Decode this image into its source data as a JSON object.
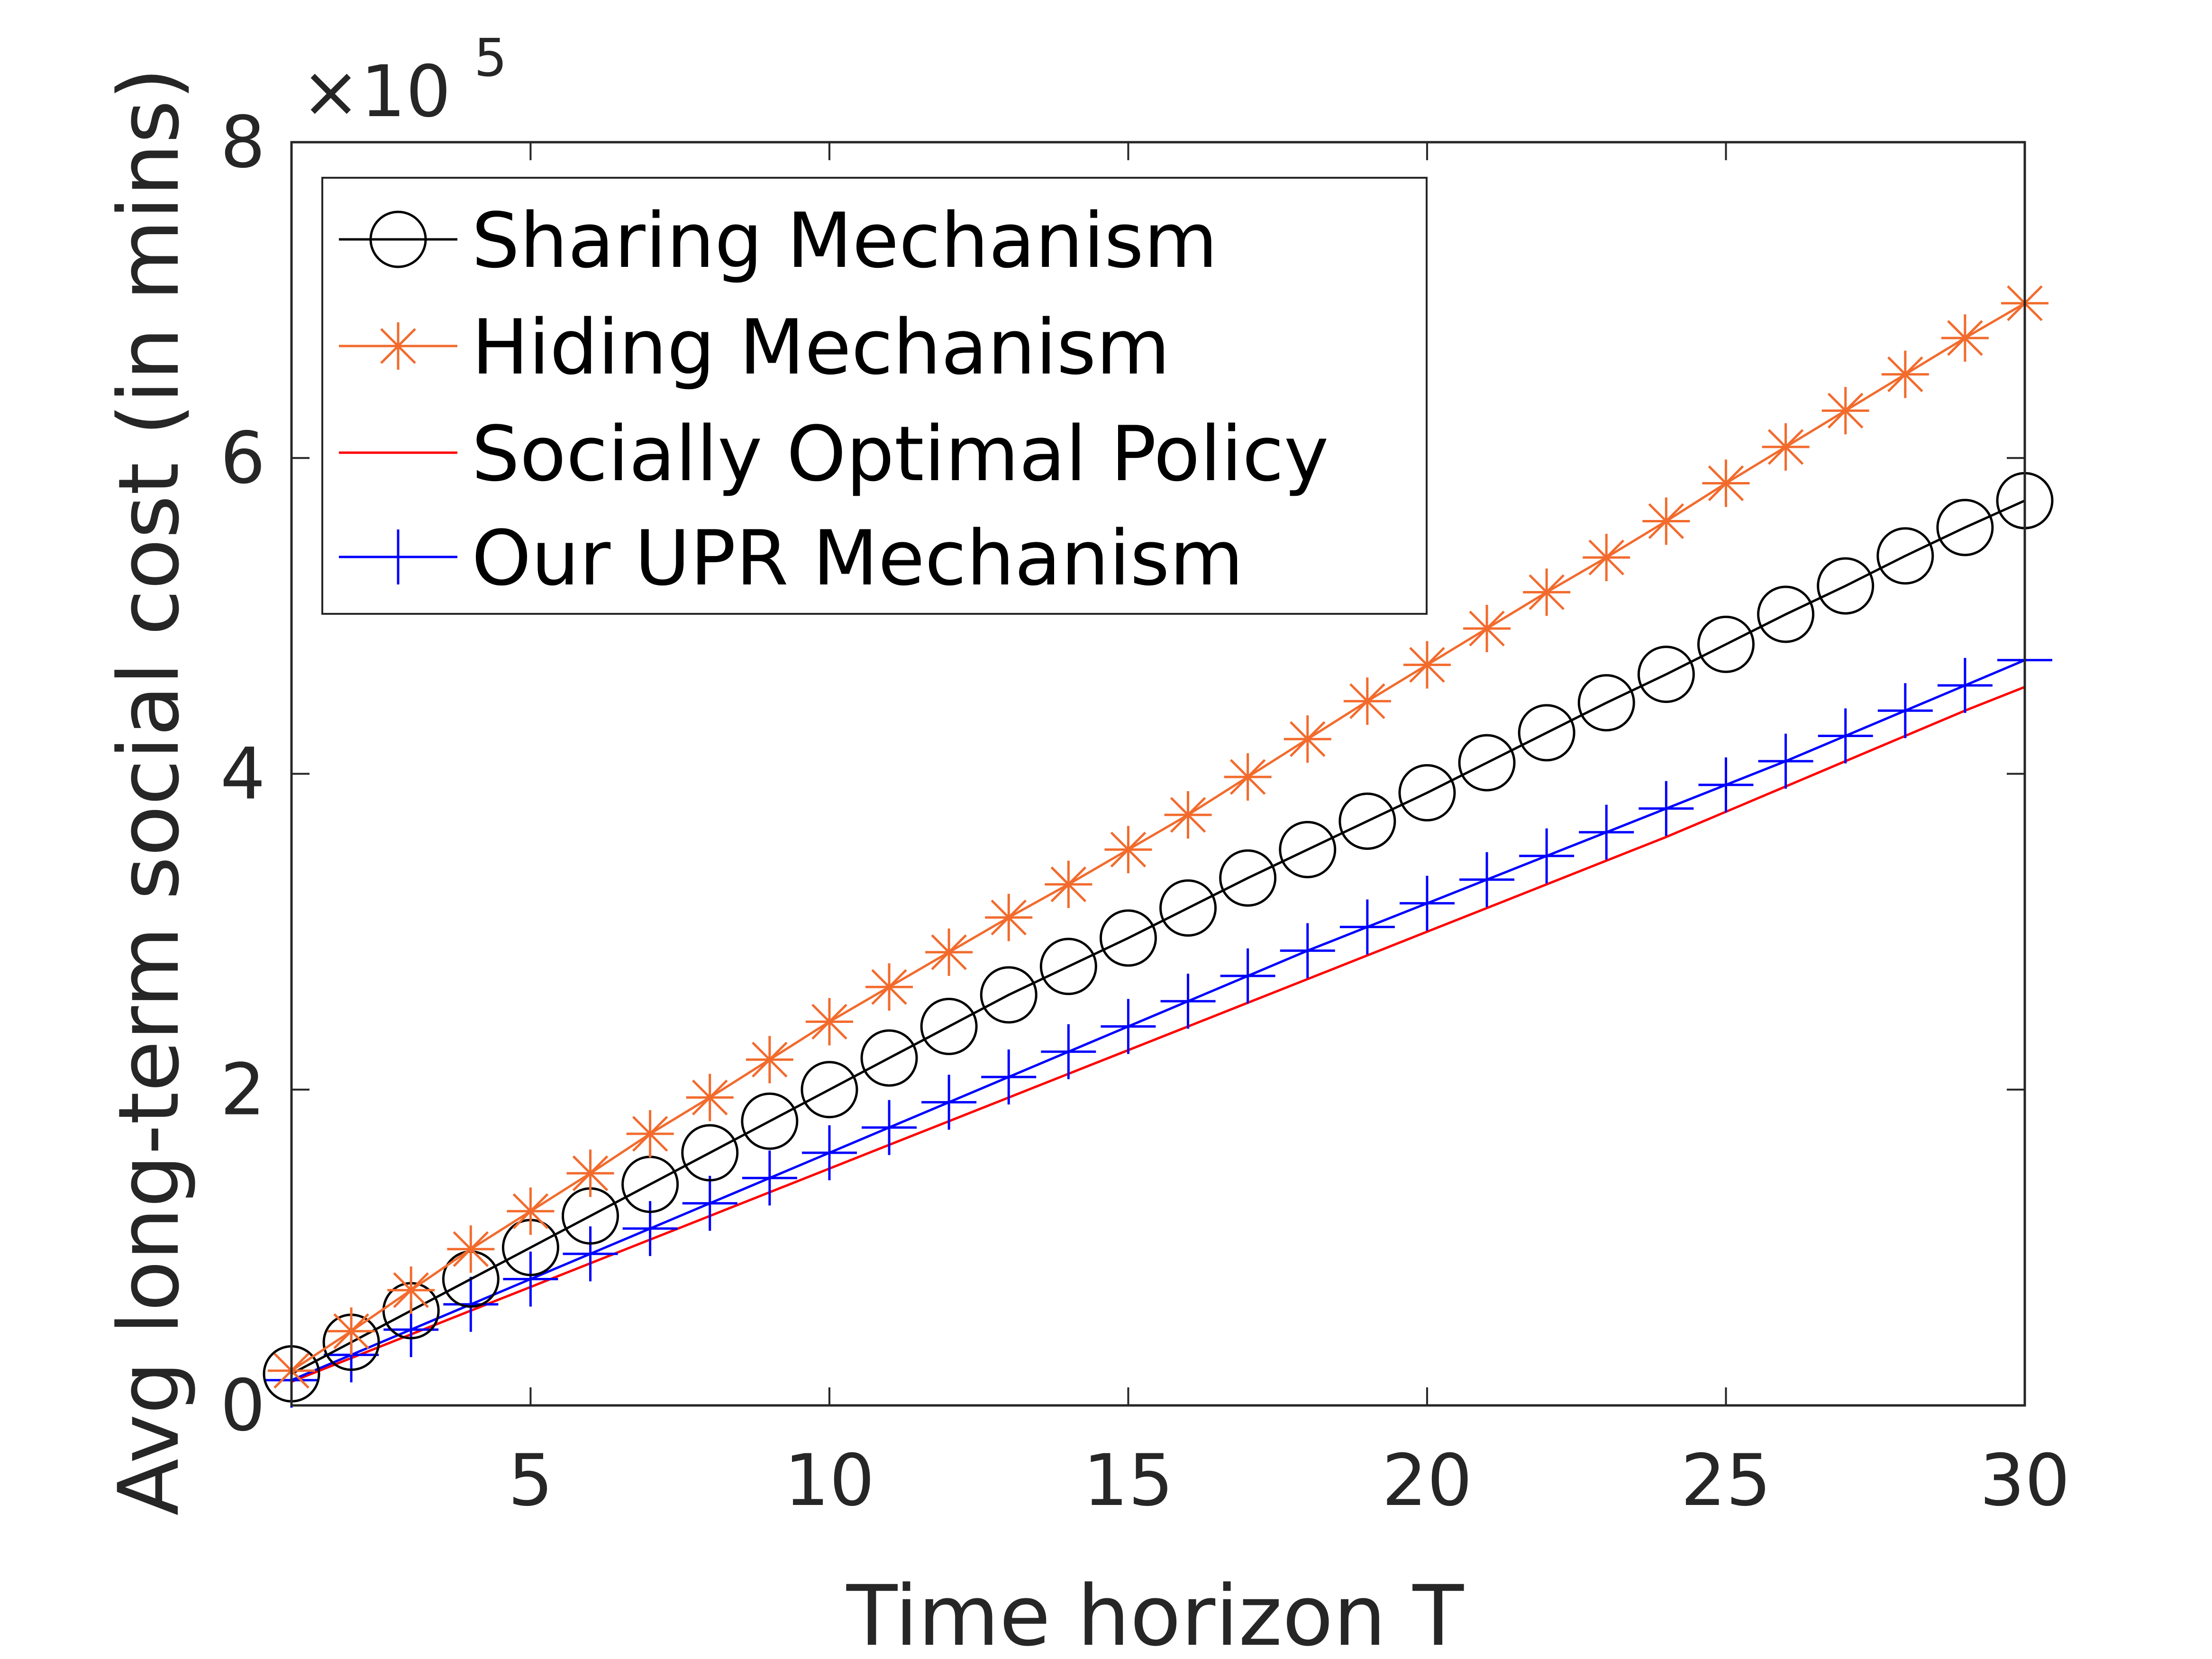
{
  "chart_data": {
    "type": "line",
    "xlabel": "Time horizon T",
    "ylabel": "Avg long-term social cost (in mins)",
    "y_multiplier": "×10",
    "y_exponent": "5",
    "xlim": [
      1,
      30
    ],
    "ylim": [
      0,
      800000
    ],
    "xticks": [
      5,
      10,
      15,
      20,
      25,
      30
    ],
    "yticks": [
      0,
      200000,
      400000,
      600000,
      800000
    ],
    "ytick_labels": [
      "0",
      "2",
      "4",
      "6",
      "8"
    ],
    "grid": false,
    "legend_position": "top-left",
    "x": [
      1,
      2,
      3,
      4,
      5,
      6,
      7,
      8,
      9,
      10,
      11,
      12,
      13,
      14,
      15,
      16,
      17,
      18,
      19,
      20,
      21,
      22,
      23,
      24,
      25,
      26,
      27,
      28,
      29,
      30
    ],
    "series": [
      {
        "name": "Sharing Mechanism",
        "color": "#000000",
        "marker": "circle",
        "values": [
          20000,
          40000,
          60000,
          80000,
          100000,
          120000,
          140000,
          160000,
          180000,
          200000,
          220000,
          240000,
          260000,
          278000,
          296000,
          315000,
          334000,
          352000,
          370000,
          388000,
          407000,
          426000,
          445000,
          463000,
          482000,
          501000,
          519000,
          538000,
          556000,
          573000
        ]
      },
      {
        "name": "Hiding Mechanism",
        "color": "#f26b2d",
        "marker": "asterisk",
        "values": [
          22000,
          47000,
          73000,
          99000,
          123000,
          147000,
          172000,
          195000,
          219000,
          243000,
          265000,
          287000,
          309000,
          330000,
          352000,
          374000,
          398000,
          422000,
          446000,
          469000,
          492000,
          515000,
          537000,
          560000,
          584000,
          607000,
          630000,
          653000,
          676000,
          698000
        ]
      },
      {
        "name": "Socially Optimal Policy",
        "color": "#ff0000",
        "marker": "none",
        "values": [
          15000,
          30000,
          45000,
          60000,
          75000,
          90000,
          105000,
          120000,
          135000,
          150000,
          165000,
          180000,
          195000,
          210000,
          225000,
          240000,
          255000,
          270000,
          285000,
          300000,
          315000,
          330000,
          345000,
          360000,
          376000,
          392000,
          408000,
          424000,
          440000,
          455000
        ]
      },
      {
        "name": "Our UPR Mechanism",
        "color": "#0000ff",
        "marker": "plus",
        "values": [
          16000,
          32000,
          48000,
          64000,
          80000,
          96000,
          112000,
          128000,
          144000,
          160000,
          176000,
          192000,
          208000,
          224000,
          240000,
          256000,
          272000,
          288000,
          303000,
          318000,
          333000,
          348000,
          363000,
          378000,
          393000,
          408000,
          424000,
          440000,
          456000,
          472000
        ]
      }
    ]
  }
}
